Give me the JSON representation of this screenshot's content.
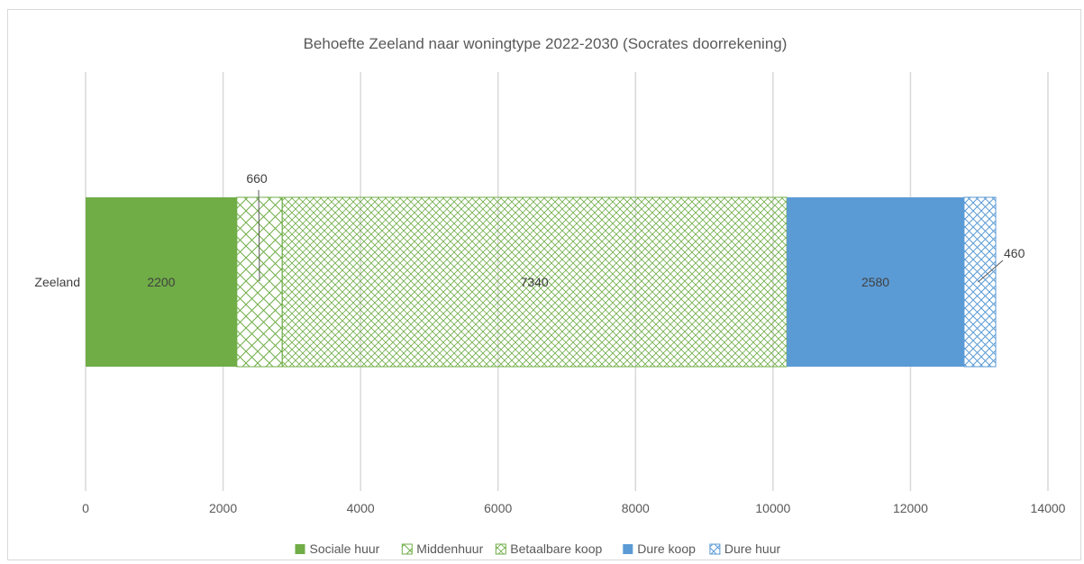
{
  "chart_data": {
    "type": "bar",
    "orientation": "horizontal",
    "stacked": true,
    "title": "Behoefte Zeeland naar woningtype 2022-2030 (Socrates doorrekening)",
    "xlabel": "",
    "ylabel": "",
    "categories": [
      "Zeeland"
    ],
    "xlim": [
      0,
      14000
    ],
    "xticks": [
      "0",
      "2000",
      "4000",
      "6000",
      "8000",
      "10000",
      "12000",
      "14000"
    ],
    "grid": true,
    "legend_position": "bottom",
    "series": [
      {
        "name": "Sociale huur",
        "values": [
          2200
        ],
        "label": "2200",
        "color": "#70ad47",
        "pattern": "solid"
      },
      {
        "name": "Middenhuur",
        "values": [
          660
        ],
        "label": "660",
        "color": "#70ad47",
        "pattern": "crosshatch"
      },
      {
        "name": "Betaalbare koop",
        "values": [
          7340
        ],
        "label": "7340",
        "color": "#70ad47",
        "pattern": "crosshatch-fine"
      },
      {
        "name": "Dure koop",
        "values": [
          2580
        ],
        "label": "2580",
        "color": "#5b9bd5",
        "pattern": "solid"
      },
      {
        "name": "Dure huur",
        "values": [
          460
        ],
        "label": "460",
        "color": "#5b9bd5",
        "pattern": "crosshatch"
      }
    ]
  }
}
